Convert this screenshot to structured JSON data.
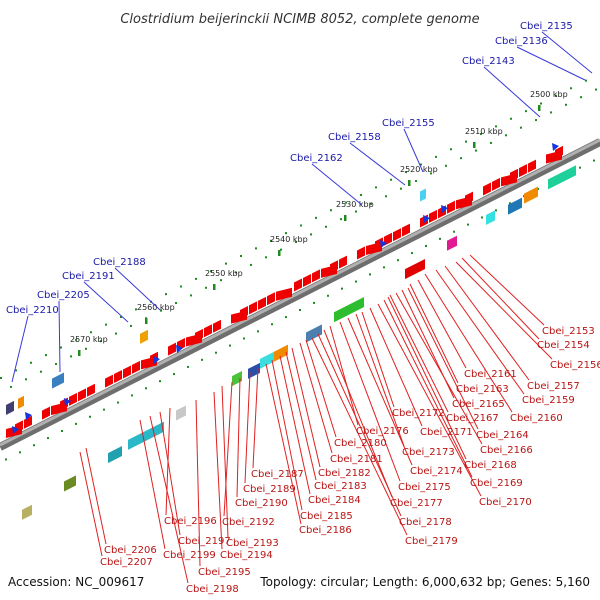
{
  "title": "Clostridium beijerinckii NCIMB 8052, complete genome",
  "footer": {
    "accession": "Accession: NC_009617",
    "summary": "Topology: circular; Length: 6,000,632 bp; Genes: 5,160"
  },
  "ticks": [
    "2500 kbp",
    "2510 kbp",
    "2520 kbp",
    "2530 kbp",
    "2540 kbp",
    "2550 kbp",
    "2560 kbp",
    "2570 kbp"
  ],
  "colors": {
    "backbone": "#8a8a8a",
    "gene_red": "#ee0000",
    "tick_green": "#1f8a1f",
    "label_blue": "#1a1aa8",
    "label_red": "#b81414",
    "leader_blue": "#3a3ad8",
    "leader_red": "#e02020"
  },
  "top_labels": [
    "Cbei_2135",
    "Cbei_2136",
    "Cbei_2143",
    "Cbei_2155",
    "Cbei_2158",
    "Cbei_2162",
    "Cbei_2188",
    "Cbei_2191",
    "Cbei_2205",
    "Cbei_2210"
  ],
  "bottom_labels": [
    "Cbei_2153",
    "Cbei_2154",
    "Cbei_2156",
    "Cbei_2157",
    "Cbei_2159",
    "Cbei_2160",
    "Cbei_2161",
    "Cbei_2163",
    "Cbei_2164",
    "Cbei_2165",
    "Cbei_2166",
    "Cbei_2167",
    "Cbei_2168",
    "Cbei_2169",
    "Cbei_2170",
    "Cbei_2171",
    "Cbei_2172",
    "Cbei_2173",
    "Cbei_2174",
    "Cbei_2175",
    "Cbei_2176",
    "Cbei_2177",
    "Cbei_2178",
    "Cbei_2179",
    "Cbei_2180",
    "Cbei_2181",
    "Cbei_2182",
    "Cbei_2183",
    "Cbei_2184",
    "Cbei_2185",
    "Cbei_2186",
    "Cbei_2187",
    "Cbei_2189",
    "Cbei_2190",
    "Cbei_2192",
    "Cbei_2193",
    "Cbei_2194",
    "Cbei_2195",
    "Cbei_2196",
    "Cbei_2197",
    "Cbei_2198",
    "Cbei_2199",
    "Cbei_2206",
    "Cbei_2207"
  ]
}
